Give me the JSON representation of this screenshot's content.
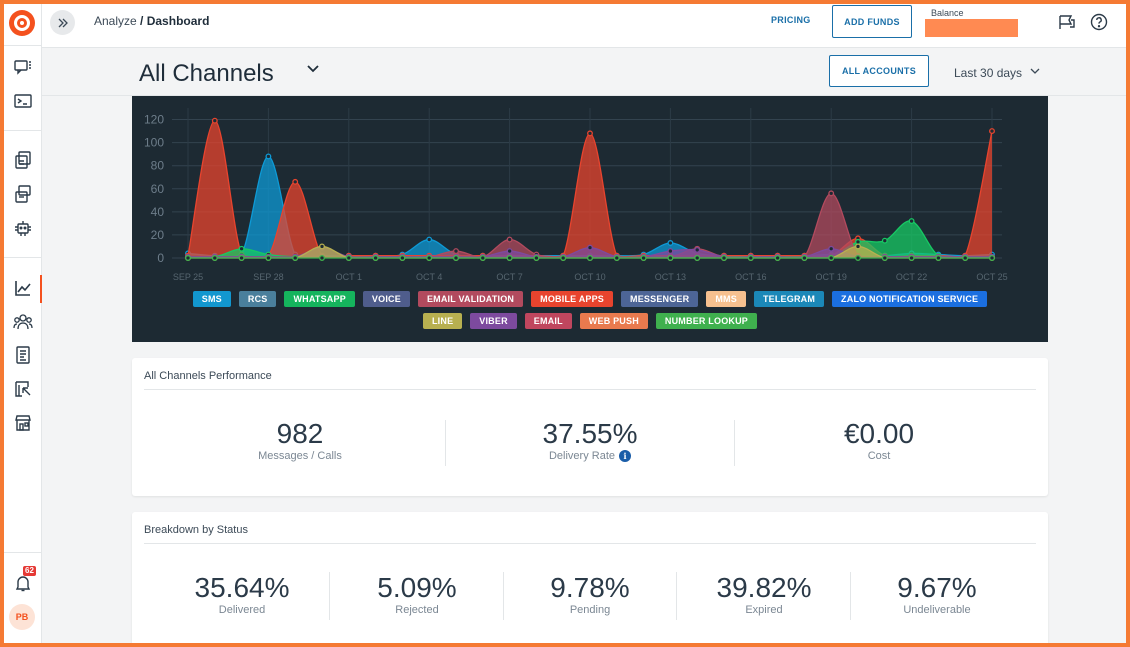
{
  "breadcrumb": {
    "parent": "Analyze",
    "separator": " / ",
    "current": "Dashboard"
  },
  "topbar": {
    "pricing": "PRICING",
    "add_funds": "ADD FUNDS",
    "balance_label": "Balance"
  },
  "sidebar": {
    "notification_count": "62",
    "avatar_initials": "PB"
  },
  "header": {
    "title": "All Channels",
    "accounts_button": "ALL ACCOUNTS",
    "date_range": "Last 30 days"
  },
  "chart_data": {
    "type": "area",
    "x": [
      "Sep 25",
      "Sep 26",
      "Sep 27",
      "Sep 28",
      "Sep 29",
      "Sep 30",
      "Oct 1",
      "Oct 2",
      "Oct 3",
      "Oct 4",
      "Oct 5",
      "Oct 6",
      "Oct 7",
      "Oct 8",
      "Oct 9",
      "Oct 10",
      "Oct 11",
      "Oct 12",
      "Oct 13",
      "Oct 14",
      "Oct 15",
      "Oct 16",
      "Oct 17",
      "Oct 18",
      "Oct 19",
      "Oct 20",
      "Oct 21",
      "Oct 22",
      "Oct 23",
      "Oct 24",
      "Oct 25"
    ],
    "xticks": [
      "SEP 25",
      "SEP 28",
      "OCT 1",
      "OCT 4",
      "OCT 7",
      "OCT 10",
      "OCT 13",
      "OCT 16",
      "OCT 19",
      "OCT 22",
      "OCT 25"
    ],
    "ylim": [
      0,
      130
    ],
    "yticks": [
      0,
      20,
      40,
      60,
      80,
      100,
      120
    ],
    "grid": true,
    "series": [
      {
        "name": "SMS",
        "color": "#0e9ad6",
        "values": [
          4,
          2,
          3,
          88,
          3,
          2,
          2,
          2,
          3,
          16,
          3,
          2,
          2,
          2,
          2,
          2,
          2,
          3,
          13,
          4,
          2,
          2,
          2,
          2,
          3,
          2,
          2,
          4,
          3,
          2,
          3
        ]
      },
      {
        "name": "MOBILE APPS",
        "color": "#e8442e",
        "values": [
          2,
          119,
          3,
          2,
          66,
          2,
          2,
          2,
          2,
          2,
          2,
          2,
          2,
          2,
          2,
          108,
          2,
          2,
          2,
          2,
          2,
          2,
          2,
          2,
          2,
          17,
          2,
          2,
          2,
          2,
          110
        ]
      },
      {
        "name": "WHATSAPP",
        "color": "#17c964",
        "values": [
          1,
          1,
          8,
          3,
          1,
          1,
          1,
          1,
          1,
          1,
          1,
          1,
          1,
          1,
          1,
          1,
          1,
          1,
          1,
          1,
          1,
          1,
          1,
          1,
          1,
          14,
          15,
          32,
          2,
          1,
          1
        ]
      },
      {
        "name": "EMAIL VALIDATION",
        "color": "#b24a5e",
        "values": [
          1,
          1,
          1,
          1,
          1,
          1,
          1,
          1,
          1,
          1,
          6,
          1,
          16,
          3,
          1,
          1,
          1,
          1,
          1,
          8,
          1,
          1,
          1,
          1,
          56,
          2,
          1,
          1,
          1,
          1,
          1
        ]
      },
      {
        "name": "VIBER",
        "color": "#7d4a9e",
        "values": [
          1,
          1,
          1,
          1,
          1,
          9,
          1,
          1,
          1,
          1,
          1,
          1,
          6,
          1,
          1,
          9,
          1,
          1,
          6,
          7,
          1,
          1,
          1,
          1,
          8,
          1,
          1,
          1,
          1,
          1,
          1
        ]
      },
      {
        "name": "LINE",
        "color": "#b8b050",
        "values": [
          0,
          0,
          0,
          0,
          0,
          10,
          0,
          0,
          0,
          0,
          0,
          0,
          0,
          0,
          0,
          0,
          0,
          0,
          0,
          0,
          0,
          0,
          0,
          0,
          0,
          10,
          0,
          0,
          0,
          0,
          0
        ]
      },
      {
        "name": "NUMBER LOOKUP",
        "color": "#3fb04e",
        "values": [
          0,
          0,
          0,
          0,
          0,
          0,
          0,
          0,
          0,
          0,
          0,
          0,
          0,
          0,
          0,
          0,
          0,
          0,
          0,
          0,
          0,
          0,
          0,
          0,
          0,
          0,
          0,
          0,
          0,
          0,
          0
        ]
      }
    ],
    "legend": [
      {
        "label": "SMS",
        "color": "#1297cf"
      },
      {
        "label": "RCS",
        "color": "#4a7f9c"
      },
      {
        "label": "WHATSAPP",
        "color": "#15b45d"
      },
      {
        "label": "VOICE",
        "color": "#4f5d8c"
      },
      {
        "label": "EMAIL VALIDATION",
        "color": "#b24a5e"
      },
      {
        "label": "MOBILE APPS",
        "color": "#e8442e"
      },
      {
        "label": "MESSENGER",
        "color": "#4d6596"
      },
      {
        "label": "MMS",
        "color": "#f6c08f"
      },
      {
        "label": "TELEGRAM",
        "color": "#1b88b8"
      },
      {
        "label": "ZALO NOTIFICATION SERVICE",
        "color": "#1b6fe0"
      },
      {
        "label": "LINE",
        "color": "#b8b050"
      },
      {
        "label": "VIBER",
        "color": "#7d4a9e"
      },
      {
        "label": "EMAIL",
        "color": "#c0465e"
      },
      {
        "label": "WEB PUSH",
        "color": "#e97a4e"
      },
      {
        "label": "NUMBER LOOKUP",
        "color": "#3fb04e"
      }
    ]
  },
  "performance": {
    "title": "All Channels Performance",
    "messages": {
      "value": "982",
      "label": "Messages / Calls"
    },
    "delivery": {
      "value": "37.55%",
      "label": "Delivery Rate"
    },
    "cost": {
      "value": "€0.00",
      "label": "Cost"
    }
  },
  "status": {
    "title": "Breakdown by Status",
    "items": [
      {
        "value": "35.64%",
        "label": "Delivered"
      },
      {
        "value": "5.09%",
        "label": "Rejected"
      },
      {
        "value": "9.78%",
        "label": "Pending"
      },
      {
        "value": "39.82%",
        "label": "Expired"
      },
      {
        "value": "9.67%",
        "label": "Undeliverable"
      }
    ]
  },
  "colors": {
    "accent": "#f4511e",
    "link": "#1a6fa8",
    "chart_bg": "#1d2a33"
  }
}
